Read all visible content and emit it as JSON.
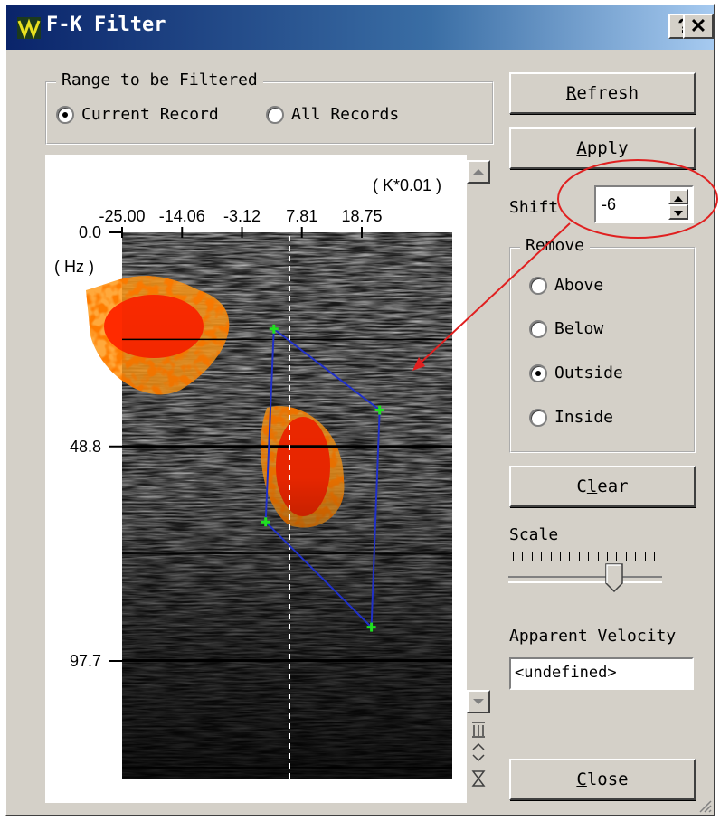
{
  "window": {
    "title": "F-K Filter",
    "help_label": "?",
    "close_label": "✕"
  },
  "range_group": {
    "legend": "Range to be Filtered",
    "options": [
      "Current Record",
      "All Records"
    ],
    "selected": "Current Record"
  },
  "buttons": {
    "refresh": "Refresh",
    "apply": "Apply",
    "clear": "Clear",
    "close": "Close"
  },
  "shift": {
    "label": "Shift",
    "value": "-6"
  },
  "remove_group": {
    "legend": "Remove",
    "options": [
      "Above",
      "Below",
      "Outside",
      "Inside"
    ],
    "selected": "Outside"
  },
  "scale": {
    "label": "Scale",
    "ticks": 16,
    "position": 0.72
  },
  "velocity": {
    "label": "Apparent Velocity",
    "value": "<undefined>"
  },
  "plot": {
    "k_unit_label": "( K*0.01 )",
    "k_ticks": [
      "-25.00",
      "-14.06",
      "-3.12",
      "7.81",
      "18.75"
    ],
    "f_unit_label": "( Hz )",
    "f_ticks": [
      "0.0",
      "48.8",
      "97.7"
    ],
    "polygon_k_hz": [
      [
        2.7,
        22.0
      ],
      [
        22.0,
        40.5
      ],
      [
        20.5,
        90.0
      ],
      [
        1.2,
        66.0
      ]
    ]
  },
  "colors": {
    "highlight": "#e02020",
    "polygon": "#2030c8",
    "vertex": "#20e020",
    "hot": "#ff2a00"
  }
}
